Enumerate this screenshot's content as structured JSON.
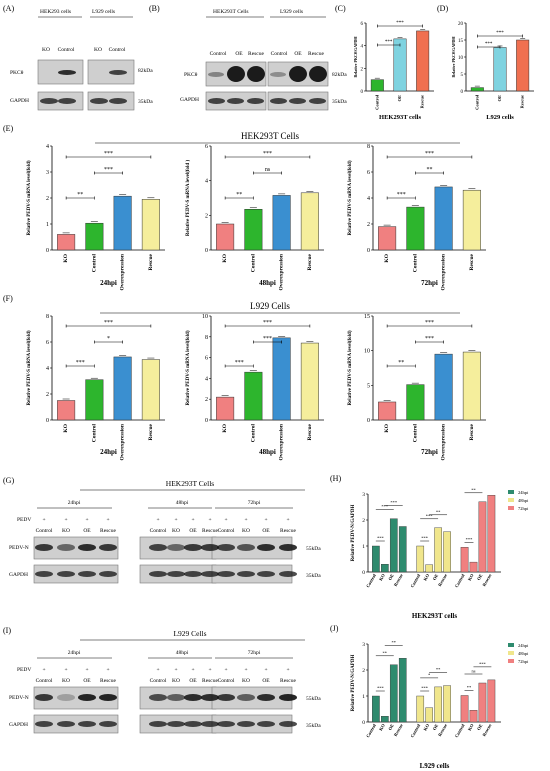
{
  "panel_labels": {
    "A": "(A)",
    "B": "(B)",
    "C": "(C)",
    "D": "(D)",
    "E": "(E)",
    "F": "(F)",
    "G": "(G)",
    "H": "(H)",
    "I": "(I)",
    "J": "(J)"
  },
  "blot_A": {
    "groups": [
      "HEK293 cells",
      "L929 cells"
    ],
    "lanes": [
      "KO",
      "Control",
      "KO",
      "Control"
    ],
    "rows": [
      "PKCθ",
      "GAPDH"
    ],
    "sizes": [
      "82kDa",
      "35kDa"
    ]
  },
  "blot_B": {
    "groups": [
      "HEK293T Cells",
      "L929 cells"
    ],
    "lanes": [
      "Control",
      "OE",
      "Rescue",
      "Control",
      "OE",
      "Rescue"
    ],
    "rows": [
      "PKCθ",
      "GAPDH"
    ],
    "sizes": [
      "82kDa",
      "35kDa"
    ]
  },
  "section_E_title": "HEK293T Cells",
  "section_F_title": "L929 Cells",
  "blot_G": {
    "title": "HEK293T Cells",
    "timepoints": [
      "24hpi",
      "48hpi",
      "72hpi"
    ],
    "pedv_label": "PEDV",
    "plus": "+",
    "lanes": [
      "Control",
      "KO",
      "OE",
      "Rescue"
    ],
    "rows": [
      "PEDV-N",
      "GAPDH"
    ],
    "sizes": [
      "55kDa",
      "35kDa"
    ]
  },
  "blot_I": {
    "title": "L929 Cells",
    "timepoints": [
      "24hpi",
      "48hpi",
      "72hpi"
    ],
    "pedv_label": "PEDV",
    "plus": "+",
    "lanes": [
      "Control",
      "KO",
      "OE",
      "Rescue"
    ],
    "rows": [
      "PEDV-N",
      "GAPDH"
    ],
    "sizes": [
      "55kDa",
      "35kDa"
    ]
  },
  "colors": {
    "ko": "#f08080",
    "control": "#2db52d",
    "overexpression": "#3a8fd0",
    "rescue": "#f5ee9c",
    "h24": "#2e8b6e",
    "h48": "#f0e68c",
    "h72": "#f08080"
  },
  "chart_data": [
    {
      "id": "C",
      "type": "bar",
      "title": "HEK293T cells",
      "ylabel": "Relative PKCθ/GAPDH",
      "ylim": [
        0,
        6
      ],
      "yticks": [
        0,
        2,
        4,
        6
      ],
      "categories": [
        "Control",
        "OE",
        "Rescue"
      ],
      "values": [
        1.0,
        4.6,
        5.3
      ],
      "colors": [
        "#2db52d",
        "#7fd3e0",
        "#f07050"
      ],
      "sig": [
        {
          "from": 0,
          "to": 1,
          "label": "***"
        },
        {
          "from": 0,
          "to": 2,
          "label": "***"
        }
      ]
    },
    {
      "id": "D",
      "type": "bar",
      "title": "L929 cells",
      "ylabel": "Relative PKCθ/GAPDH",
      "ylim": [
        0,
        20
      ],
      "yticks": [
        0,
        5,
        10,
        15,
        20
      ],
      "categories": [
        "Control",
        "OE",
        "Rescue"
      ],
      "values": [
        1.0,
        12.8,
        15.0
      ],
      "colors": [
        "#2db52d",
        "#7fd3e0",
        "#f07050"
      ],
      "sig": [
        {
          "from": 0,
          "to": 1,
          "label": "***"
        },
        {
          "from": 0,
          "to": 2,
          "label": "***"
        }
      ]
    },
    {
      "id": "E1",
      "type": "bar",
      "title": "24hpi",
      "ylabel": "Relative PEDV-S mRNA level(fold)",
      "ylim": [
        0,
        4
      ],
      "yticks": [
        0,
        1,
        2,
        3,
        4
      ],
      "categories": [
        "KO",
        "Control",
        "Overexpression",
        "Rescue"
      ],
      "values": [
        0.6,
        1.03,
        2.07,
        1.95
      ],
      "sig": [
        {
          "from": 0,
          "to": 1,
          "label": "**"
        },
        {
          "from": 1,
          "to": 2,
          "label": "***"
        },
        {
          "from": 0,
          "to": 3,
          "label": "***"
        }
      ]
    },
    {
      "id": "E2",
      "type": "bar",
      "title": "48hpi",
      "ylabel": "Relative PEDV-S mRNA level(fold  )",
      "ylim": [
        0,
        6
      ],
      "yticks": [
        0,
        2,
        4,
        6
      ],
      "categories": [
        "KO",
        "Control",
        "Overexpression",
        "Rescue"
      ],
      "values": [
        1.5,
        2.35,
        3.15,
        3.3
      ],
      "sig": [
        {
          "from": 0,
          "to": 1,
          "label": "**"
        },
        {
          "from": 1,
          "to": 2,
          "label": "ns"
        },
        {
          "from": 0,
          "to": 3,
          "label": "***"
        }
      ]
    },
    {
      "id": "E3",
      "type": "bar",
      "title": "72hpi",
      "ylabel": "Relative PEDV-S mRNA level(fold)",
      "ylim": [
        0,
        8
      ],
      "yticks": [
        0,
        2,
        4,
        6,
        8
      ],
      "categories": [
        "KO",
        "Control",
        "Overexpression",
        "Rescue"
      ],
      "values": [
        1.8,
        3.3,
        4.85,
        4.6
      ],
      "sig": [
        {
          "from": 0,
          "to": 1,
          "label": "***"
        },
        {
          "from": 1,
          "to": 2,
          "label": "**"
        },
        {
          "from": 0,
          "to": 3,
          "label": "***"
        }
      ]
    },
    {
      "id": "F1",
      "type": "bar",
      "title": "24hpi",
      "ylabel": "Relative PEDV-S mRNA level(fold)",
      "ylim": [
        0,
        8
      ],
      "yticks": [
        0,
        2,
        4,
        6,
        8
      ],
      "categories": [
        "KO",
        "Control",
        "Overexpression",
        "Rescue"
      ],
      "values": [
        1.5,
        3.1,
        4.85,
        4.65
      ],
      "sig": [
        {
          "from": 0,
          "to": 1,
          "label": "***"
        },
        {
          "from": 1,
          "to": 2,
          "label": "*"
        },
        {
          "from": 0,
          "to": 3,
          "label": "***"
        }
      ]
    },
    {
      "id": "F2",
      "type": "bar",
      "title": "48hpi",
      "ylabel": "Relative PEDV-S mRNA level(fold)",
      "ylim": [
        0,
        10
      ],
      "yticks": [
        0,
        2,
        4,
        6,
        8,
        10
      ],
      "categories": [
        "KO",
        "Control",
        "Overexpression",
        "Rescue"
      ],
      "values": [
        2.2,
        4.6,
        7.9,
        7.4
      ],
      "sig": [
        {
          "from": 0,
          "to": 1,
          "label": "***"
        },
        {
          "from": 1,
          "to": 2,
          "label": "***"
        },
        {
          "from": 0,
          "to": 3,
          "label": "***"
        }
      ]
    },
    {
      "id": "F3",
      "type": "bar",
      "title": "72hpi",
      "ylabel": "Relative PEDV-S mRNA level(fold)",
      "ylim": [
        0,
        15
      ],
      "yticks": [
        0,
        5,
        10,
        15
      ],
      "categories": [
        "KO",
        "Control",
        "Overexpression",
        "Rescue"
      ],
      "values": [
        2.6,
        5.1,
        9.5,
        9.8
      ],
      "sig": [
        {
          "from": 0,
          "to": 1,
          "label": "**"
        },
        {
          "from": 1,
          "to": 2,
          "label": "***"
        },
        {
          "from": 0,
          "to": 3,
          "label": "***"
        }
      ]
    },
    {
      "id": "H",
      "type": "bar",
      "title": "HEK293T cells",
      "ylabel": "Relative PEDV-N/GAPDH",
      "ylim": [
        0,
        3
      ],
      "yticks": [
        0,
        1,
        2,
        3
      ],
      "categories": [
        "Control",
        "KO",
        "OE",
        "Rescue"
      ],
      "series": [
        {
          "name": "24hpi",
          "values": [
            1.0,
            0.3,
            2.05,
            1.75
          ]
        },
        {
          "name": "48hpi",
          "values": [
            1.0,
            0.28,
            1.7,
            1.55
          ]
        },
        {
          "name": "72hpi",
          "values": [
            0.95,
            0.38,
            2.7,
            2.95
          ]
        }
      ],
      "sig_labels": [
        "***",
        "***",
        "***",
        "***",
        "***",
        "**",
        "***",
        "**"
      ]
    },
    {
      "id": "J",
      "type": "bar",
      "title": "L929 cells",
      "ylabel": "Relative PEDV-N/GAPDH",
      "ylim": [
        0,
        3
      ],
      "yticks": [
        0,
        1,
        2,
        3
      ],
      "categories": [
        "Control",
        "KO",
        "OE",
        "Rescue"
      ],
      "series": [
        {
          "name": "24hpi",
          "values": [
            1.0,
            0.22,
            2.2,
            2.45
          ]
        },
        {
          "name": "48hpi",
          "values": [
            1.0,
            0.55,
            1.35,
            1.4
          ]
        },
        {
          "name": "72hpi",
          "values": [
            1.02,
            0.45,
            1.5,
            1.62
          ]
        }
      ],
      "sig_labels": [
        "***",
        "**",
        "**",
        "***",
        "*",
        "**",
        "**",
        "ns",
        "***"
      ]
    }
  ]
}
